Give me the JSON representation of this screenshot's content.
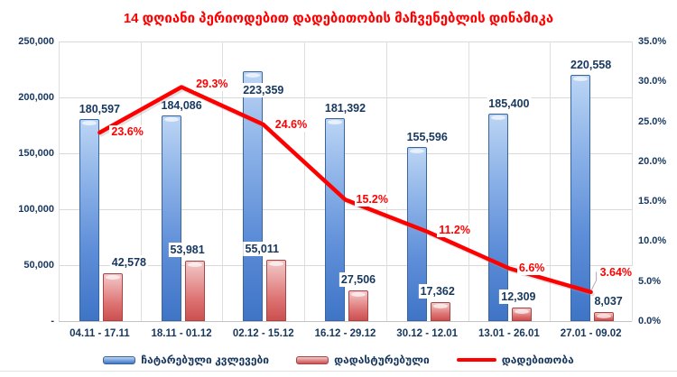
{
  "chart_data": {
    "type": "combo-bar-line",
    "title": "14 დღიანი პერიოდებით დადებითობის მაჩვენებლის დინამიკა",
    "title_color": "#ff0000",
    "categories": [
      "04.11 - 17.11",
      "18.11 - 01.12",
      "02.12 - 15.12",
      "16.12 - 29.12",
      "30.12 - 12.01",
      "13.01 - 26.01",
      "27.01 - 09.02"
    ],
    "series": [
      {
        "name": "ჩატარებული კვლევები",
        "type": "bar",
        "axis": "left",
        "color": "#4a7fd0",
        "values": [
          180597,
          184086,
          223359,
          181392,
          155596,
          185400,
          220558
        ],
        "labels": [
          "180,597",
          "184,086",
          "223,359",
          "181,392",
          "155,596",
          "185,400",
          "220,558"
        ]
      },
      {
        "name": "დადასტურებული",
        "type": "bar",
        "axis": "left",
        "color": "#d95f5f",
        "values": [
          42578,
          53981,
          55011,
          27506,
          17362,
          12309,
          8037
        ],
        "labels": [
          "42,578",
          "53,981",
          "55,011",
          "27,506",
          "17,362",
          "12,309",
          "8,037"
        ]
      },
      {
        "name": "დადებითობა",
        "type": "line",
        "axis": "right",
        "color": "#ff0000",
        "values": [
          23.6,
          29.3,
          24.6,
          15.2,
          11.2,
          6.6,
          3.64
        ],
        "labels": [
          "23.6%",
          "29.3%",
          "24.6%",
          "15.2%",
          "11.2%",
          "6.6%",
          "3.64%"
        ]
      }
    ],
    "left_axis": {
      "max": 250000,
      "tick_values": [
        250000,
        200000,
        150000,
        100000,
        50000,
        0
      ],
      "tick_labels": [
        "250,000",
        "200,000",
        "150,000",
        "100,000",
        "50,000",
        "-"
      ]
    },
    "right_axis": {
      "max": 35,
      "tick_values": [
        35,
        30,
        25,
        20,
        15,
        10,
        5,
        0
      ],
      "tick_labels": [
        "35.0%",
        "30.0%",
        "25.0%",
        "20.0%",
        "15.0%",
        "10.0%",
        "5.0%",
        "0.0%"
      ]
    },
    "legend_position": "bottom",
    "grid": "on"
  }
}
